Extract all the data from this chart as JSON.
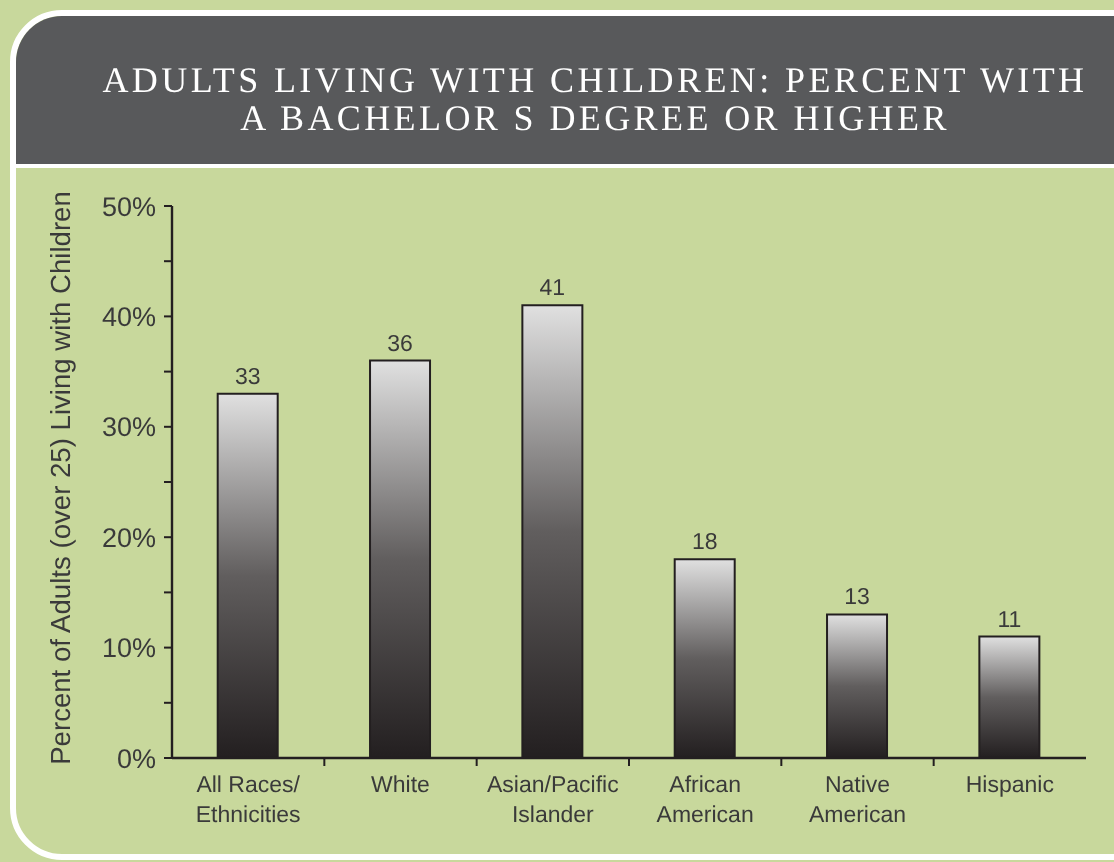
{
  "chart_data": {
    "type": "bar",
    "title": "ADULTS LIVING WITH CHILDREN: PERCENT WITH A BACHELOR S DEGREE OR HIGHER",
    "ylabel": "Percent of Adults (over 25) Living with Children",
    "categories": [
      "All Races/ Ethnicities",
      "White",
      "Asian/Pacific Islander",
      "African American",
      "Native American",
      "Hispanic"
    ],
    "values": [
      33,
      36,
      41,
      18,
      13,
      11
    ],
    "color": "#231f20",
    "data_labels": true,
    "ylim": [
      0,
      50
    ],
    "yticks": [
      {
        "value": 0,
        "label": "0%"
      },
      {
        "value": 5,
        "label": null
      },
      {
        "value": 10,
        "label": "10%"
      },
      {
        "value": 15,
        "label": null
      },
      {
        "value": 20,
        "label": "20%"
      },
      {
        "value": 25,
        "label": null
      },
      {
        "value": 30,
        "label": "30%"
      },
      {
        "value": 35,
        "label": null
      },
      {
        "value": 40,
        "label": "40%"
      },
      {
        "value": 45,
        "label": null
      },
      {
        "value": 50,
        "label": "50%"
      }
    ]
  }
}
